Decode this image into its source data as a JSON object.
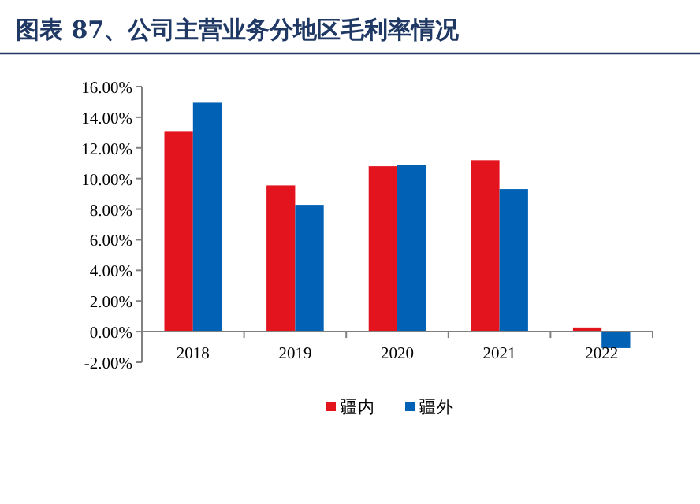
{
  "chart_data": {
    "type": "bar",
    "title": "图表 87、公司主营业务分地区毛利率情况",
    "categories": [
      "2018",
      "2019",
      "2020",
      "2021",
      "2022"
    ],
    "series": [
      {
        "name": "疆内",
        "color": "#e3141e",
        "values": [
          13.1,
          9.55,
          10.8,
          11.2,
          0.27
        ]
      },
      {
        "name": "疆外",
        "color": "#0061b5",
        "values": [
          14.95,
          8.28,
          10.9,
          9.31,
          -1.07
        ]
      }
    ],
    "ylim": [
      -2,
      16
    ],
    "yticks": [
      {
        "value": -2,
        "label": "-2.00%"
      },
      {
        "value": 0,
        "label": "0.00%"
      },
      {
        "value": 2,
        "label": "2.00%"
      },
      {
        "value": 4,
        "label": "4.00%"
      },
      {
        "value": 6,
        "label": "6.00%"
      },
      {
        "value": 8,
        "label": "8.00%"
      },
      {
        "value": 10,
        "label": "10.00%"
      },
      {
        "value": 12,
        "label": "12.00%"
      },
      {
        "value": 14,
        "label": "14.00%"
      },
      {
        "value": 16,
        "label": "16.00%"
      }
    ],
    "grid": false,
    "legend": "bottom"
  }
}
